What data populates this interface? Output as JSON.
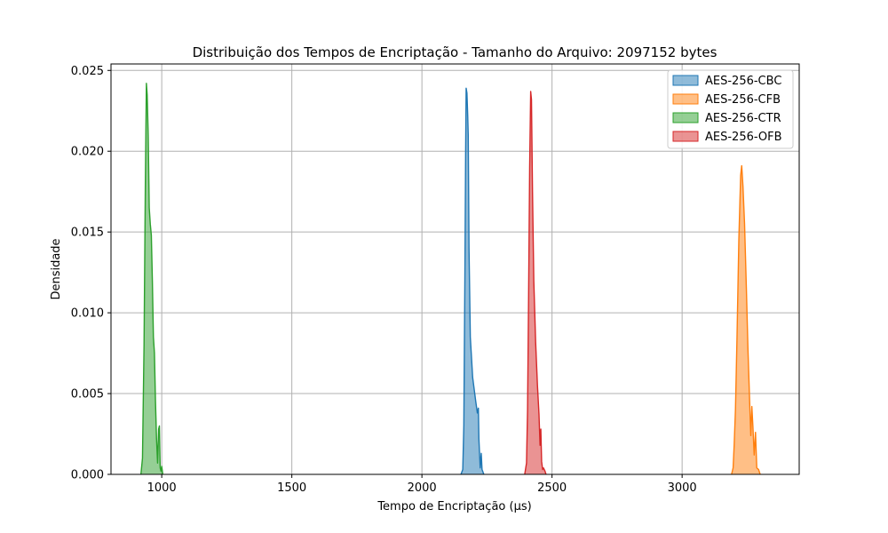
{
  "chart_data": {
    "type": "area",
    "title": "Distribuição dos Tempos de Encriptação - Tamanho do Arquivo: 2097152 bytes",
    "xlabel": "Tempo de Encriptação (µs)",
    "ylabel": "Densidade",
    "xlim": [
      805,
      3450
    ],
    "ylim": [
      0,
      0.0254
    ],
    "xticks": [
      1000,
      1500,
      2000,
      2500,
      3000
    ],
    "yticks": [
      0.0,
      0.005,
      0.01,
      0.015,
      0.02,
      0.025
    ],
    "xtick_labels": [
      "1000",
      "1500",
      "2000",
      "2500",
      "3000"
    ],
    "ytick_labels": [
      "0.000",
      "0.005",
      "0.010",
      "0.015",
      "0.020",
      "0.025"
    ],
    "grid": true,
    "legend_position": "top-right",
    "series": [
      {
        "name": "AES-256-CBC",
        "color": "#1f77b4",
        "points": [
          [
            2150,
            0
          ],
          [
            2157,
            0.0003
          ],
          [
            2161,
            0.003
          ],
          [
            2165,
            0.012
          ],
          [
            2168,
            0.02
          ],
          [
            2170,
            0.0239
          ],
          [
            2173,
            0.0236
          ],
          [
            2176,
            0.0222
          ],
          [
            2178,
            0.021
          ],
          [
            2181,
            0.014
          ],
          [
            2186,
            0.0085
          ],
          [
            2195,
            0.006
          ],
          [
            2207,
            0.0045
          ],
          [
            2213,
            0.0038
          ],
          [
            2217,
            0.0041
          ],
          [
            2219,
            0.0022
          ],
          [
            2224,
            0.0004
          ],
          [
            2228,
            0.0013
          ],
          [
            2231,
            0.0003
          ],
          [
            2238,
            0
          ]
        ]
      },
      {
        "name": "AES-256-CFB",
        "color": "#ff7f0e",
        "points": [
          [
            3190,
            0
          ],
          [
            3196,
            0.0004
          ],
          [
            3200,
            0.0018
          ],
          [
            3205,
            0.004
          ],
          [
            3211,
            0.0085
          ],
          [
            3218,
            0.0145
          ],
          [
            3225,
            0.0185
          ],
          [
            3229,
            0.0191
          ],
          [
            3234,
            0.0178
          ],
          [
            3240,
            0.0155
          ],
          [
            3247,
            0.0115
          ],
          [
            3253,
            0.0078
          ],
          [
            3259,
            0.0048
          ],
          [
            3264,
            0.0024
          ],
          [
            3268,
            0.0042
          ],
          [
            3272,
            0.003
          ],
          [
            3277,
            0.0012
          ],
          [
            3282,
            0.0026
          ],
          [
            3287,
            0.0004
          ],
          [
            3294,
            0.0003
          ],
          [
            3300,
            0
          ]
        ]
      },
      {
        "name": "AES-256-CTR",
        "color": "#2ca02c",
        "points": [
          [
            920,
            0
          ],
          [
            926,
            0.001
          ],
          [
            932,
            0.008
          ],
          [
            937,
            0.018
          ],
          [
            941,
            0.0242
          ],
          [
            944,
            0.0235
          ],
          [
            948,
            0.021
          ],
          [
            952,
            0.0165
          ],
          [
            956,
            0.0155
          ],
          [
            960,
            0.0148
          ],
          [
            964,
            0.012
          ],
          [
            968,
            0.0085
          ],
          [
            972,
            0.0075
          ],
          [
            976,
            0.0045
          ],
          [
            980,
            0.0022
          ],
          [
            984,
            0.0007
          ],
          [
            988,
            0.0028
          ],
          [
            991,
            0.003
          ],
          [
            994,
            0.0004
          ],
          [
            997,
            0.0002
          ],
          [
            1000,
            0.0005
          ],
          [
            1004,
            0
          ]
        ]
      },
      {
        "name": "AES-256-OFB",
        "color": "#d62728",
        "points": [
          [
            2395,
            0
          ],
          [
            2402,
            0.0007
          ],
          [
            2406,
            0.004
          ],
          [
            2410,
            0.011
          ],
          [
            2414,
            0.019
          ],
          [
            2418,
            0.0237
          ],
          [
            2421,
            0.0232
          ],
          [
            2425,
            0.0175
          ],
          [
            2430,
            0.012
          ],
          [
            2437,
            0.0082
          ],
          [
            2444,
            0.0055
          ],
          [
            2450,
            0.0037
          ],
          [
            2454,
            0.0018
          ],
          [
            2457,
            0.0028
          ],
          [
            2460,
            0.0008
          ],
          [
            2464,
            0.0003
          ],
          [
            2467,
            0.0004
          ],
          [
            2473,
            0.0002
          ],
          [
            2477,
            0
          ]
        ]
      }
    ]
  }
}
